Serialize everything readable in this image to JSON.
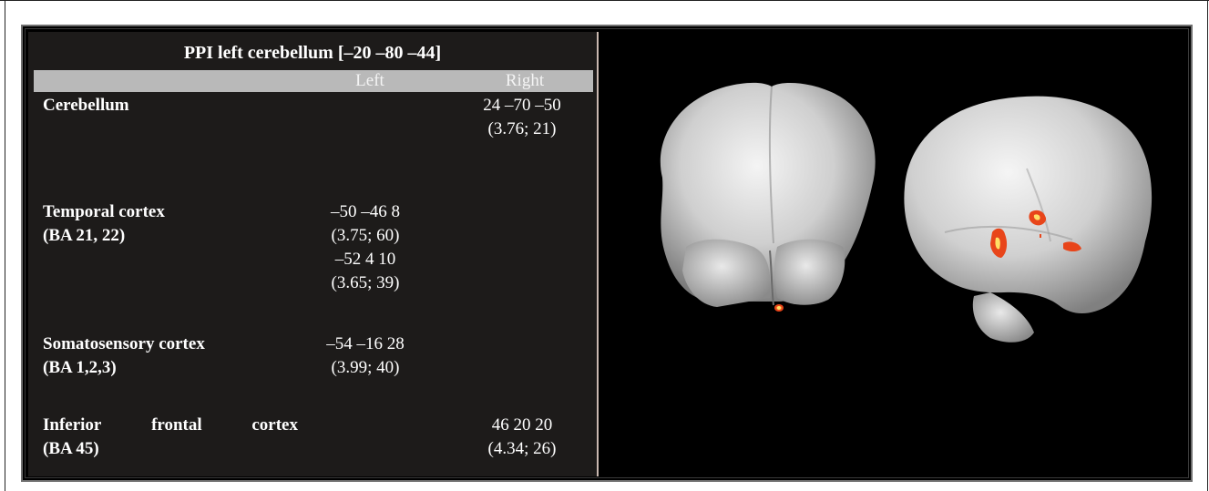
{
  "table": {
    "title": "PPI left cerebellum [–20 –80 –44]",
    "columns": {
      "left": "Left",
      "right": "Right"
    },
    "rows": [
      {
        "region": [
          "Cerebellum"
        ],
        "left": [],
        "right": [
          "24 –70 –50",
          "(3.76; 21)"
        ]
      },
      {
        "region": [
          "Temporal cortex",
          "(BA 21, 22)"
        ],
        "left": [
          "–50 –46 8",
          "(3.75; 60)",
          "–52 4 10",
          "(3.65; 39)"
        ],
        "right": []
      },
      {
        "region": [
          "Somatosensory cortex",
          "(BA 1,2,3)"
        ],
        "left": [
          "–54 –16 28",
          "(3.99; 40)"
        ],
        "right": []
      },
      {
        "region": [
          "Inferior frontal cortex",
          "(BA 45)"
        ],
        "left": [],
        "right": [
          "46 20 20",
          "(4.34; 26)"
        ]
      }
    ]
  },
  "colors": {
    "table_bg": "#1d1b1a",
    "header_bar": "#b9b9b9",
    "activation": "#e8451a",
    "activation_hot": "#ffe066"
  }
}
